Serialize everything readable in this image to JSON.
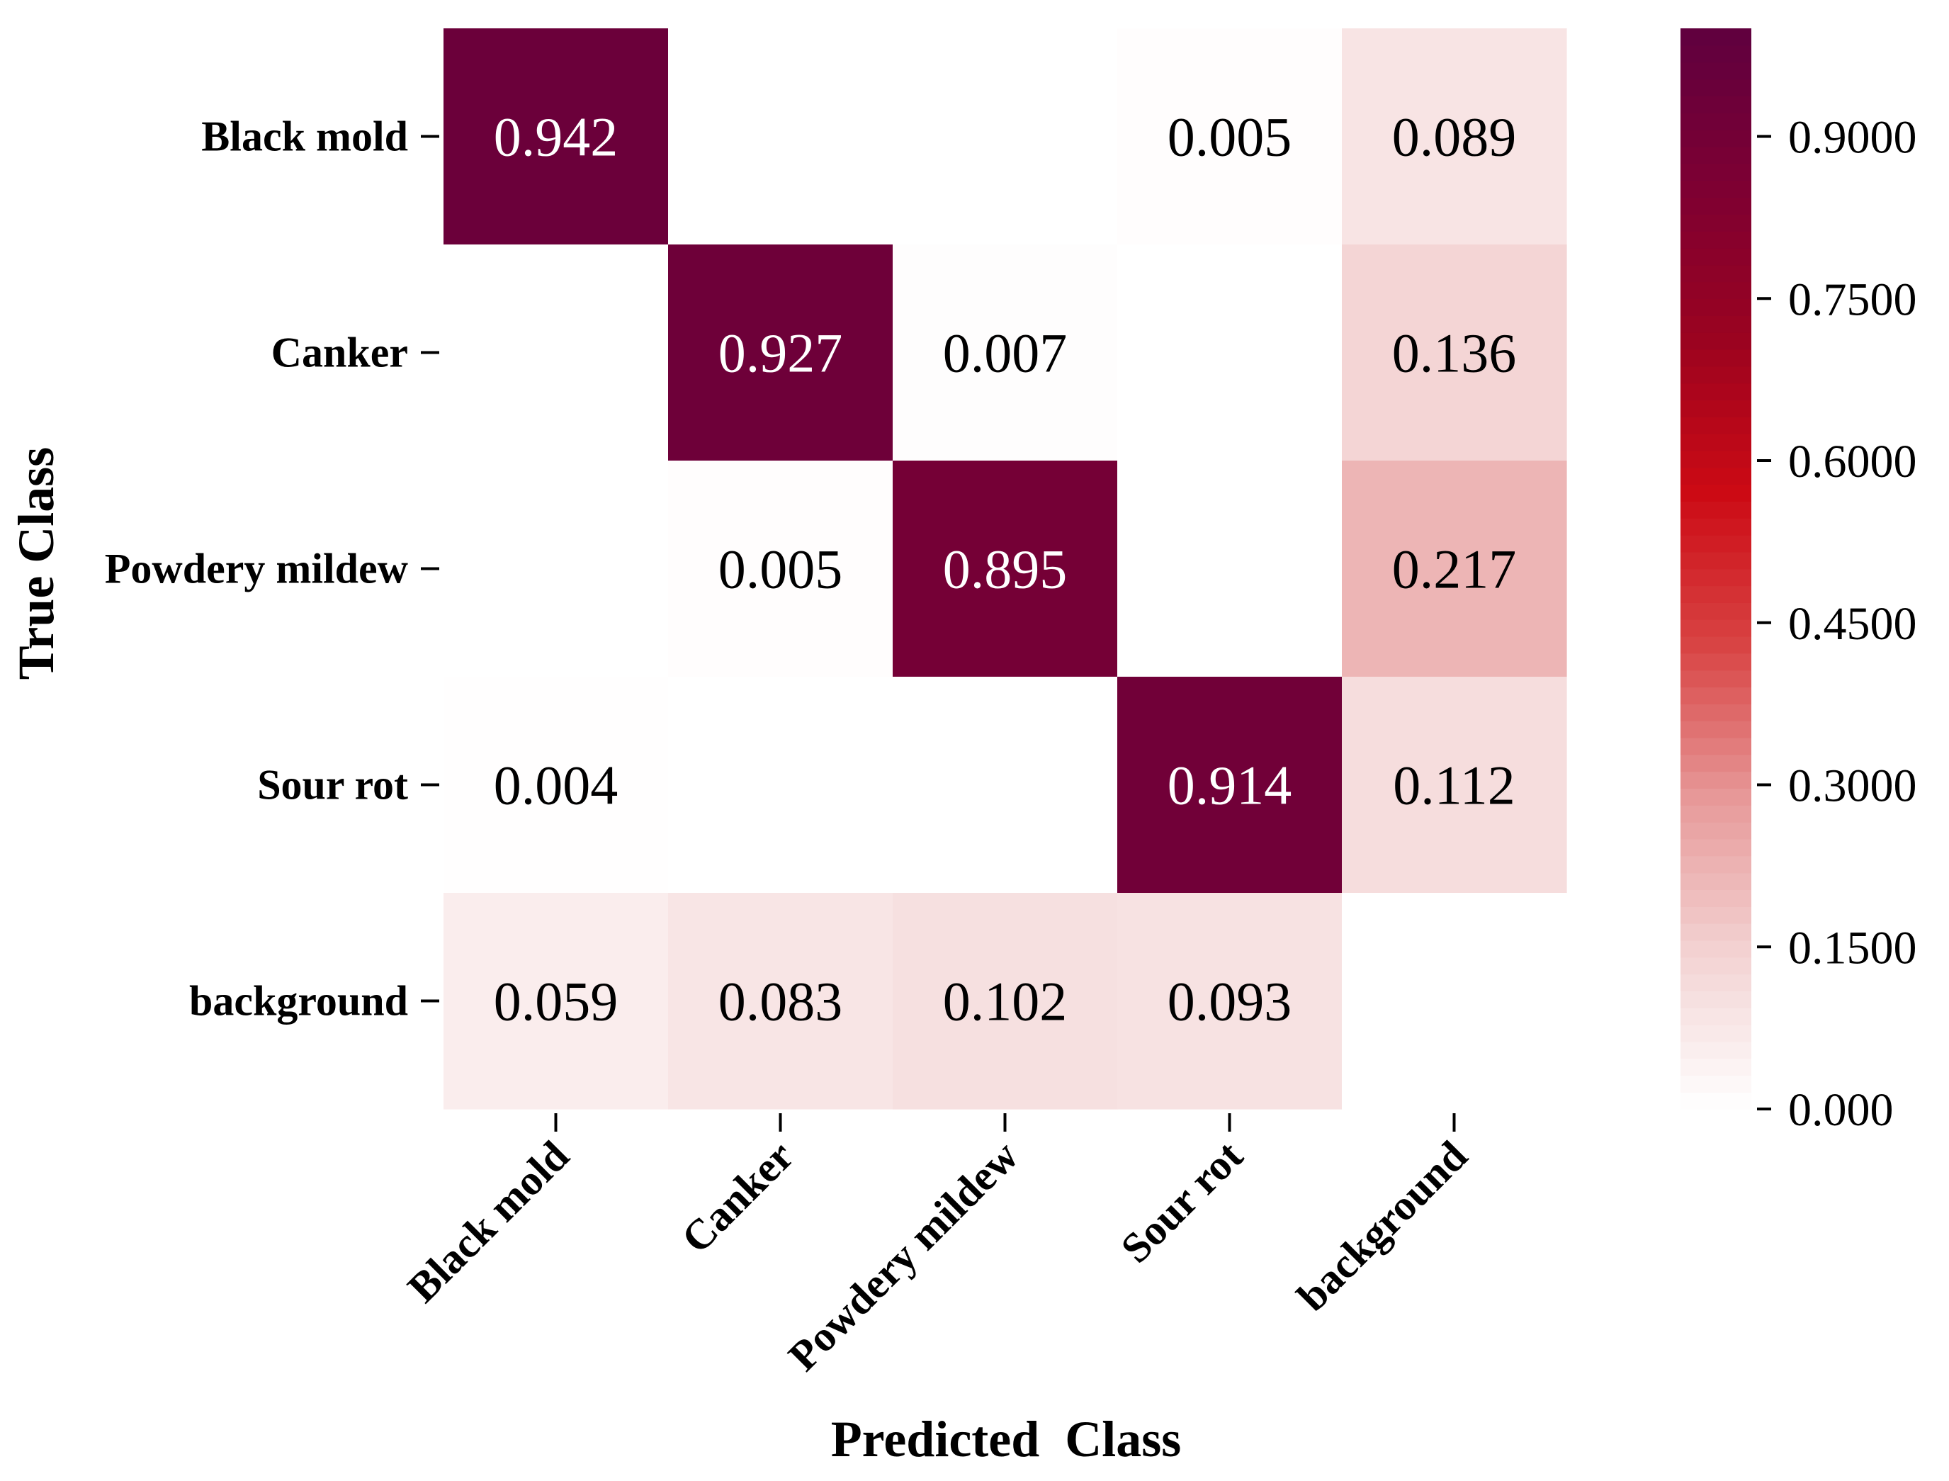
{
  "chart_data": {
    "type": "heatmap",
    "title": "",
    "xlabel": "Predicted  Class",
    "ylabel": "True Class",
    "x_categories": [
      "Black mold",
      "Canker",
      "Powdery mildew",
      "Sour rot",
      "background"
    ],
    "y_categories": [
      "Black mold",
      "Canker",
      "Powdery mildew",
      "Sour rot",
      "background"
    ],
    "values": [
      [
        0.942,
        null,
        null,
        0.005,
        0.089
      ],
      [
        null,
        0.927,
        0.007,
        null,
        0.136
      ],
      [
        null,
        0.005,
        0.895,
        null,
        0.217
      ],
      [
        0.004,
        null,
        null,
        0.914,
        0.112
      ],
      [
        0.059,
        0.083,
        0.102,
        0.093,
        null
      ]
    ],
    "value_labels": [
      [
        "0.942",
        "",
        "",
        "0.005",
        "0.089"
      ],
      [
        "",
        "0.927",
        "0.007",
        "",
        "0.136"
      ],
      [
        "",
        "0.005",
        "0.895",
        "",
        "0.217"
      ],
      [
        "0.004",
        "",
        "",
        "0.914",
        "0.112"
      ],
      [
        "0.059",
        "0.083",
        "0.102",
        "0.093",
        ""
      ]
    ],
    "colorbar": {
      "range": [
        0,
        1
      ],
      "ticks": [
        0,
        0.15,
        0.3,
        0.45,
        0.6,
        0.75,
        0.9
      ],
      "tick_labels": [
        "0.000",
        "0.1500",
        "0.3000",
        "0.4500",
        "0.6000",
        "0.7500",
        "0.9000"
      ]
    },
    "colormap": [
      "#ffffff",
      "#f3d3d3",
      "#e79a9a",
      "#d84444",
      "#cc0a14",
      "#9a0320",
      "#7d0033",
      "#5f003f"
    ],
    "cell_text_colors": {
      "dark": "#000000",
      "light": "#ffffff"
    }
  }
}
